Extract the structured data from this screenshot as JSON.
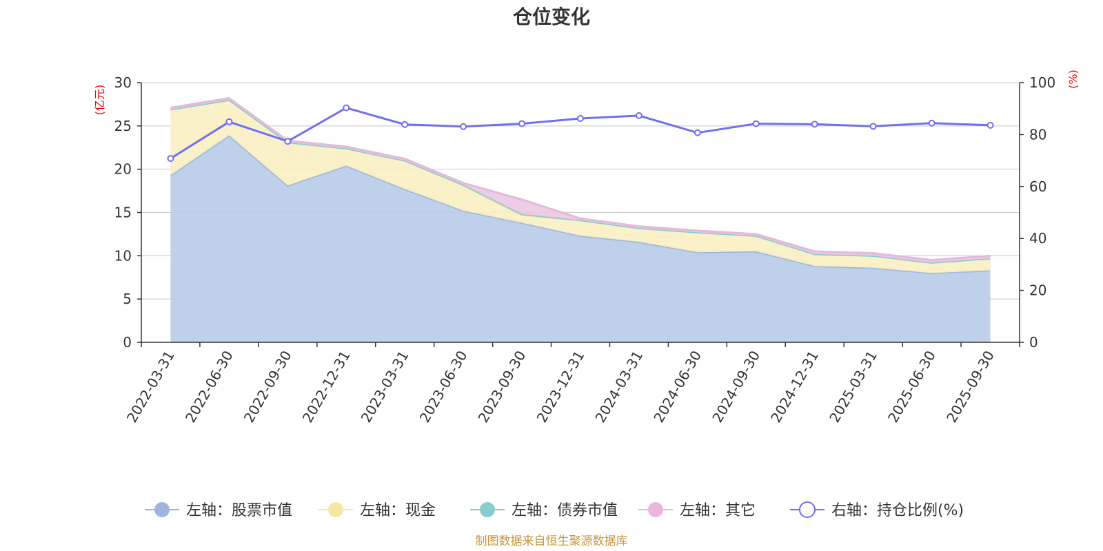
{
  "chart_data": {
    "type": "area",
    "title": "仓位变化",
    "categories": [
      "2022-03-31",
      "2022-06-30",
      "2022-09-30",
      "2022-12-31",
      "2023-03-31",
      "2023-06-30",
      "2023-09-30",
      "2023-12-31",
      "2024-03-31",
      "2024-06-30",
      "2024-09-30",
      "2024-12-31",
      "2025-03-31",
      "2025-06-30",
      "2025-09-30"
    ],
    "left_axis": {
      "unit": "(亿元)",
      "ylim": [
        0,
        30
      ],
      "ticks": [
        "0",
        "5",
        "10",
        "15",
        "20",
        "25",
        "30"
      ]
    },
    "right_axis": {
      "unit": "(%)",
      "ylim": [
        0,
        100
      ],
      "ticks": [
        "0",
        "20",
        "40",
        "60",
        "80",
        "100"
      ]
    },
    "stacked_series": [
      {
        "name": "左轴：股票市值",
        "color": "#9db5e0",
        "fill": "#b8cbe9",
        "values": [
          19.3,
          23.9,
          18.1,
          20.4,
          17.7,
          15.2,
          13.8,
          12.3,
          11.6,
          10.4,
          10.5,
          8.8,
          8.6,
          8.0,
          8.3
        ]
      },
      {
        "name": "左轴：现金",
        "color": "#f7e7a4",
        "fill": "#faefc2",
        "values": [
          7.6,
          4.1,
          5.0,
          2.0,
          3.3,
          2.9,
          0.9,
          1.8,
          1.6,
          2.3,
          1.8,
          1.4,
          1.4,
          1.2,
          1.4
        ]
      },
      {
        "name": "左轴：债券市值",
        "color": "#86cdcb",
        "fill": "#a9dbd9",
        "values": [
          0,
          0,
          0,
          0,
          0,
          0.1,
          0.1,
          0,
          0,
          0,
          0,
          0,
          0,
          0,
          0
        ]
      },
      {
        "name": "左轴：其它",
        "color": "#e6b8db",
        "fill": "#edc8e3",
        "values": [
          0.2,
          0.2,
          0.2,
          0.2,
          0.2,
          0.2,
          1.7,
          0.2,
          0.2,
          0.2,
          0.2,
          0.3,
          0.3,
          0.3,
          0.3
        ]
      }
    ],
    "line_series": [
      {
        "name": "右轴：持仓比例(%)",
        "color": "#7070f0",
        "values": [
          70.8,
          84.9,
          77.4,
          90.3,
          83.9,
          83.1,
          84.2,
          86.2,
          87.3,
          80.7,
          84.2,
          84.0,
          83.2,
          84.4,
          83.6
        ]
      }
    ],
    "legend_position": "bottom",
    "source": "制图数据来自恒生聚源数据库"
  }
}
